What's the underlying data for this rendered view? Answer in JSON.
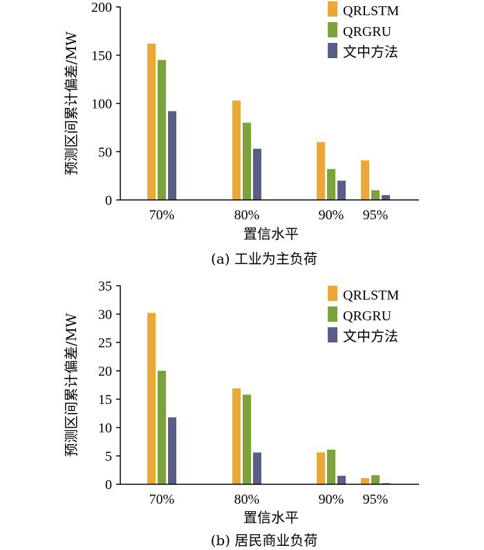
{
  "chart_data": [
    {
      "type": "bar",
      "caption": "(a) 工业为主负荷",
      "xlabel": "置信水平",
      "ylabel": "预测区间累计偏差/MW",
      "categories": [
        "70%",
        "80%",
        "90%",
        "95%"
      ],
      "ylim": [
        0,
        200
      ],
      "yticks": [
        0,
        50,
        100,
        150,
        200
      ],
      "grid": false,
      "legend_position": "top-right",
      "series": [
        {
          "name": "QRLSTM",
          "color": "#ECA832",
          "values": [
            162,
            103,
            60,
            41
          ]
        },
        {
          "name": "QRGRU",
          "color": "#7BA33C",
          "values": [
            145,
            80,
            32,
            10
          ]
        },
        {
          "name": "文中方法",
          "color": "#5A5D86",
          "values": [
            92,
            53,
            20,
            5
          ]
        }
      ]
    },
    {
      "type": "bar",
      "caption": "(b) 居民商业负荷",
      "xlabel": "置信水平",
      "ylabel": "预测区间累计偏差/MW",
      "categories": [
        "70%",
        "80%",
        "90%",
        "95%"
      ],
      "ylim": [
        0,
        35
      ],
      "yticks": [
        0,
        5,
        10,
        15,
        20,
        25,
        30,
        35
      ],
      "grid": false,
      "legend_position": "top-right",
      "series": [
        {
          "name": "QRLSTM",
          "color": "#ECA832",
          "values": [
            30.2,
            16.9,
            5.6,
            1.1
          ]
        },
        {
          "name": "QRGRU",
          "color": "#7BA33C",
          "values": [
            20.0,
            15.8,
            6.1,
            1.6
          ]
        },
        {
          "name": "文中方法",
          "color": "#5A5D86",
          "values": [
            11.8,
            5.6,
            1.5,
            0.2
          ]
        }
      ]
    }
  ]
}
